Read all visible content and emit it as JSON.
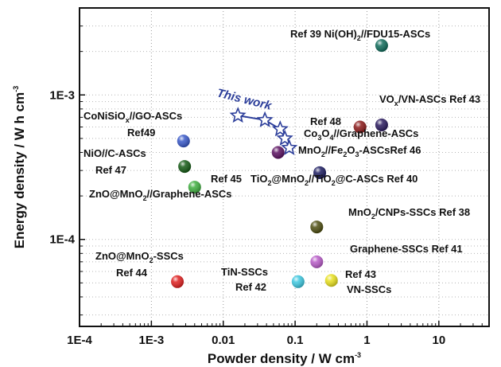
{
  "chart_data": {
    "type": "scatter",
    "xscale": "log",
    "yscale": "log",
    "xlim": [
      0.0001,
      50
    ],
    "ylim": [
      2.5e-05,
      0.004
    ],
    "grid": true,
    "xlabel": {
      "base": "Powder density / W cm",
      "sup": "-3"
    },
    "ylabel": {
      "base": "Energy density / W h cm",
      "sup": "-3"
    },
    "xticks": [
      {
        "v": 0.0001,
        "t": "1E-4"
      },
      {
        "v": 0.001,
        "t": "1E-3"
      },
      {
        "v": 0.01,
        "t": "0.01"
      },
      {
        "v": 0.1,
        "t": "0.1"
      },
      {
        "v": 1,
        "t": "1"
      },
      {
        "v": 10,
        "t": "10"
      }
    ],
    "yticks": [
      {
        "v": 0.0001,
        "t": "1E-4"
      },
      {
        "v": 0.001,
        "t": "1E-3"
      }
    ],
    "this_work": {
      "label": "This work",
      "color": "#2c3e9a",
      "points": [
        {
          "x": 0.016,
          "y": 0.00072
        },
        {
          "x": 0.038,
          "y": 0.00067
        },
        {
          "x": 0.062,
          "y": 0.00058
        },
        {
          "x": 0.072,
          "y": 0.0005
        },
        {
          "x": 0.083,
          "y": 0.00043
        }
      ]
    },
    "points": [
      {
        "x": 1.6,
        "y": 0.0022,
        "color": "#0f6b5a"
      },
      {
        "x": 1.6,
        "y": 0.00062,
        "color": "#2a1a5e"
      },
      {
        "x": 0.8,
        "y": 0.0006,
        "color": "#8b1a1a"
      },
      {
        "x": 0.0028,
        "y": 0.00048,
        "color": "#3858c8"
      },
      {
        "x": 0.058,
        "y": 0.0004,
        "color": "#5a1060"
      },
      {
        "x": 0.0029,
        "y": 0.00032,
        "color": "#145a14"
      },
      {
        "x": 0.22,
        "y": 0.00029,
        "color": "#1c1c60"
      },
      {
        "x": 0.004,
        "y": 0.00023,
        "color": "#3fae3f"
      },
      {
        "x": 0.2,
        "y": 0.000122,
        "color": "#4d4d10"
      },
      {
        "x": 0.2,
        "y": 7e-05,
        "color": "#b85cc8"
      },
      {
        "x": 0.0023,
        "y": 5.1e-05,
        "color": "#e02020"
      },
      {
        "x": 0.11,
        "y": 5.1e-05,
        "color": "#3ec8e0"
      },
      {
        "x": 0.32,
        "y": 5.2e-05,
        "color": "#e8e020"
      }
    ],
    "annotations": [
      {
        "name": "ref39",
        "parts": [
          [
            "Ref 39 Ni(OH)",
            ""
          ],
          [
            "2",
            "sub"
          ],
          [
            "//FDU15-ASCs",
            ""
          ]
        ]
      },
      {
        "name": "ref43-vox",
        "parts": [
          [
            "VO",
            ""
          ],
          [
            "x",
            "sub"
          ],
          [
            "/VN-ASCs  Ref 43",
            ""
          ]
        ]
      },
      {
        "name": "ref48",
        "parts": [
          [
            "Ref 48",
            ""
          ]
        ]
      },
      {
        "name": "ref-co3o4",
        "parts": [
          [
            "Co",
            ""
          ],
          [
            "3",
            "sub"
          ],
          [
            "O",
            ""
          ],
          [
            "4",
            "sub"
          ],
          [
            "//Graphene-ASCs",
            ""
          ]
        ]
      },
      {
        "name": "ref46",
        "parts": [
          [
            "MnO",
            ""
          ],
          [
            "2",
            "sub"
          ],
          [
            "//Fe",
            ""
          ],
          [
            "2",
            "sub"
          ],
          [
            "O",
            ""
          ],
          [
            "3",
            "sub"
          ],
          [
            "-ASCsRef 46",
            ""
          ]
        ]
      },
      {
        "name": "ref40",
        "parts": [
          [
            "TiO",
            ""
          ],
          [
            "2",
            "sub"
          ],
          [
            "@MnO",
            ""
          ],
          [
            "2",
            "sub"
          ],
          [
            "//TiO",
            ""
          ],
          [
            "2",
            "sub"
          ],
          [
            "@C-ASCs  Ref 40",
            ""
          ]
        ]
      },
      {
        "name": "ref49-a",
        "parts": [
          [
            "CoNiSiO",
            ""
          ],
          [
            "x",
            "sub"
          ],
          [
            "//GO-ASCs",
            ""
          ]
        ]
      },
      {
        "name": "ref49-b",
        "parts": [
          [
            "Ref49",
            ""
          ]
        ]
      },
      {
        "name": "ref47-a",
        "parts": [
          [
            "NiO//C-ASCs",
            ""
          ]
        ]
      },
      {
        "name": "ref47-b",
        "parts": [
          [
            "Ref 47",
            ""
          ]
        ]
      },
      {
        "name": "ref45",
        "parts": [
          [
            "Ref 45",
            ""
          ]
        ]
      },
      {
        "name": "ref-znomno2-g",
        "parts": [
          [
            "ZnO@MnO",
            ""
          ],
          [
            "2",
            "sub"
          ],
          [
            "//Graphene-ASCs",
            ""
          ]
        ]
      },
      {
        "name": "ref38",
        "parts": [
          [
            "MnO",
            ""
          ],
          [
            "2",
            "sub"
          ],
          [
            "/CNPs-SSCs  Ref 38",
            ""
          ]
        ]
      },
      {
        "name": "ref41",
        "parts": [
          [
            "Graphene-SSCs      Ref 41",
            ""
          ]
        ]
      },
      {
        "name": "ref44-a",
        "parts": [
          [
            "ZnO@MnO",
            ""
          ],
          [
            "2",
            "sub"
          ],
          [
            "-SSCs",
            ""
          ]
        ]
      },
      {
        "name": "ref44-b",
        "parts": [
          [
            "Ref 44",
            ""
          ]
        ]
      },
      {
        "name": "ref42-a",
        "parts": [
          [
            "TiN-SSCs",
            ""
          ]
        ]
      },
      {
        "name": "ref42-b",
        "parts": [
          [
            "Ref 42",
            ""
          ]
        ]
      },
      {
        "name": "ref43-vn-a",
        "parts": [
          [
            "Ref 43",
            ""
          ]
        ]
      },
      {
        "name": "ref43-vn-b",
        "parts": [
          [
            "VN-SSCs",
            ""
          ]
        ]
      }
    ]
  }
}
